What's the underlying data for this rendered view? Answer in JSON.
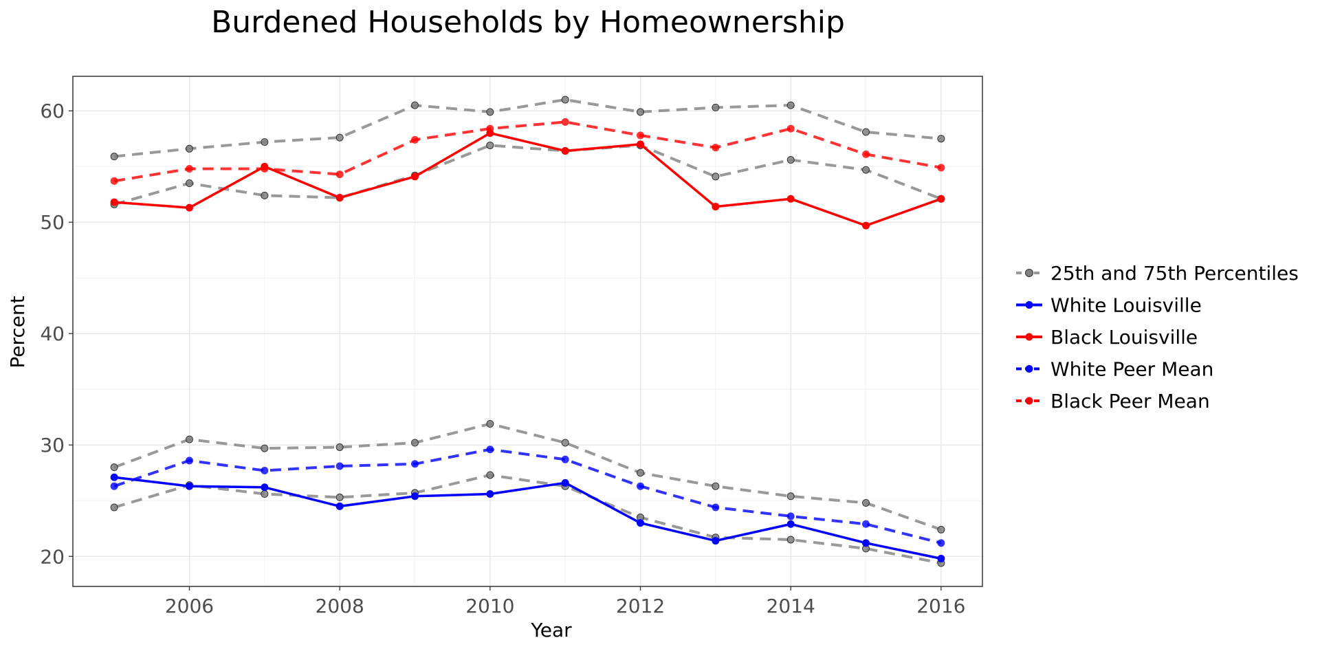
{
  "chart_data": {
    "type": "line",
    "title": "Burdened Households by Homeownership",
    "xlabel": "Year",
    "ylabel": "Percent",
    "xlim": [
      2004.45,
      2016.55
    ],
    "ylim": [
      17.3,
      63.1
    ],
    "x_ticks": [
      2006,
      2008,
      2010,
      2012,
      2014,
      2016
    ],
    "y_ticks": [
      20,
      30,
      40,
      50,
      60
    ],
    "grid": true,
    "legend_position": "right",
    "x": [
      2005,
      2006,
      2007,
      2008,
      2009,
      2010,
      2011,
      2012,
      2013,
      2014,
      2015,
      2016
    ],
    "series": [
      {
        "name": "25th and 75th Percentiles",
        "legend_label": "25th and 75th Percentiles",
        "group": "percentile",
        "color": "#808080",
        "style": "dashed",
        "values": [
          55.9,
          56.6,
          57.2,
          57.6,
          60.5,
          59.9,
          61.0,
          59.9,
          60.3,
          60.5,
          58.1,
          57.5
        ]
      },
      {
        "name": "25th and 75th Percentiles",
        "group": "percentile",
        "color": "#808080",
        "style": "dashed",
        "values": [
          51.6,
          53.5,
          52.4,
          52.2,
          54.2,
          56.9,
          56.4,
          56.9,
          54.1,
          55.6,
          54.7,
          52.1
        ]
      },
      {
        "name": "25th and 75th Percentiles",
        "group": "percentile",
        "color": "#808080",
        "style": "dashed",
        "values": [
          28.0,
          30.5,
          29.7,
          29.8,
          30.2,
          31.9,
          30.2,
          27.5,
          26.3,
          25.4,
          24.8,
          22.4
        ]
      },
      {
        "name": "25th and 75th Percentiles",
        "group": "percentile",
        "color": "#808080",
        "style": "dashed",
        "values": [
          24.4,
          26.4,
          25.6,
          25.3,
          25.7,
          27.3,
          26.3,
          23.5,
          21.7,
          21.5,
          20.7,
          19.4
        ]
      },
      {
        "name": "White Louisville",
        "legend_label": "White Louisville",
        "color": "#0000ff",
        "style": "solid",
        "values": [
          27.1,
          26.3,
          26.2,
          24.5,
          25.4,
          25.6,
          26.6,
          23.0,
          21.4,
          22.9,
          21.2,
          19.8
        ]
      },
      {
        "name": "Black Louisville",
        "legend_label": "Black Louisville",
        "color": "#ff0000",
        "style": "solid",
        "values": [
          51.8,
          51.3,
          55.0,
          52.2,
          54.1,
          58.0,
          56.4,
          57.0,
          51.4,
          52.1,
          49.7,
          52.1
        ]
      },
      {
        "name": "White Peer Mean",
        "legend_label": "White Peer Mean",
        "color": "#0000ff",
        "style": "dashed",
        "values": [
          26.3,
          28.6,
          27.7,
          28.1,
          28.3,
          29.6,
          28.7,
          26.3,
          24.4,
          23.6,
          22.9,
          21.2
        ]
      },
      {
        "name": "Black Peer Mean",
        "legend_label": "Black Peer Mean",
        "color": "#ff0000",
        "style": "dashed",
        "values": [
          53.7,
          54.8,
          54.8,
          54.3,
          57.4,
          58.4,
          59.0,
          57.8,
          56.7,
          58.4,
          56.1,
          54.9
        ]
      }
    ],
    "legend": [
      "25th and 75th Percentiles",
      "White Louisville",
      "Black Louisville",
      "White Peer Mean",
      "Black Peer Mean"
    ]
  }
}
